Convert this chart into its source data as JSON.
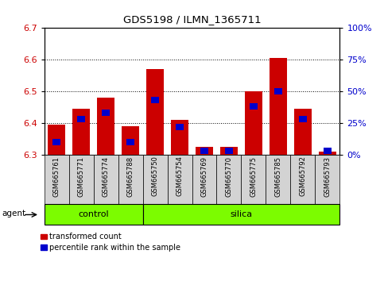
{
  "title": "GDS5198 / ILMN_1365711",
  "samples": [
    "GSM665761",
    "GSM665771",
    "GSM665774",
    "GSM665788",
    "GSM665750",
    "GSM665754",
    "GSM665769",
    "GSM665770",
    "GSM665775",
    "GSM665785",
    "GSM665792",
    "GSM665793"
  ],
  "groups": [
    "control",
    "control",
    "control",
    "control",
    "silica",
    "silica",
    "silica",
    "silica",
    "silica",
    "silica",
    "silica",
    "silica"
  ],
  "red_values": [
    6.395,
    6.445,
    6.48,
    6.39,
    6.57,
    6.41,
    6.325,
    6.325,
    6.5,
    6.605,
    6.445,
    6.31
  ],
  "blue_percentiles": [
    10,
    28,
    33,
    10,
    43,
    22,
    3,
    3,
    38,
    50,
    28,
    3
  ],
  "baseline": 6.3,
  "ylim_left": [
    6.3,
    6.7
  ],
  "ylim_right": [
    0,
    100
  ],
  "yticks_left": [
    6.3,
    6.4,
    6.5,
    6.6,
    6.7
  ],
  "yticks_right": [
    0,
    25,
    50,
    75,
    100
  ],
  "ytick_labels_right": [
    "0%",
    "25%",
    "50%",
    "75%",
    "100%"
  ],
  "bar_color": "#cc0000",
  "blue_color": "#0000cc",
  "bar_width": 0.7,
  "green_color": "#7cfc00",
  "agent_label": "agent",
  "legend_red": "transformed count",
  "legend_blue": "percentile rank within the sample",
  "bg_color": "#ffffff",
  "tick_color_left": "#cc0000",
  "tick_color_right": "#0000cc",
  "n_control": 4,
  "n_silica": 8
}
